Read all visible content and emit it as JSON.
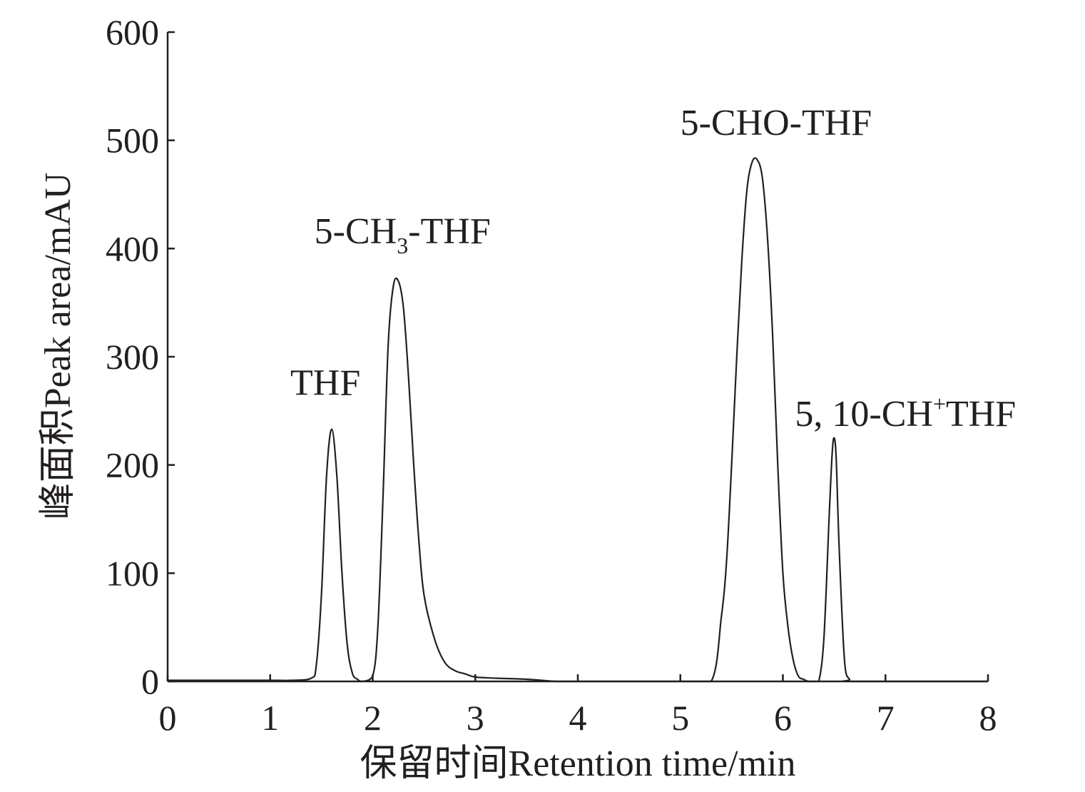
{
  "chart_data": {
    "type": "line",
    "xlabel": "保留时间Retention time/min",
    "ylabel": "峰面积Peak area/mAU",
    "xlim": [
      0,
      8
    ],
    "ylim": [
      0,
      600
    ],
    "x_ticks": [
      "0",
      "1",
      "2",
      "3",
      "4",
      "5",
      "6",
      "7",
      "8"
    ],
    "y_ticks": [
      "0",
      "100",
      "200",
      "300",
      "400",
      "500",
      "600"
    ],
    "grid": false,
    "series": [
      {
        "x": [
          0.0,
          1.0,
          1.2,
          1.4,
          1.45,
          1.5,
          1.55,
          1.6,
          1.65,
          1.7,
          1.75,
          1.8,
          1.85,
          1.9,
          2.0,
          2.05,
          2.1,
          2.15,
          2.2,
          2.25,
          2.3,
          2.35,
          2.4,
          2.45,
          2.5,
          2.6,
          2.7,
          2.8,
          2.9,
          3.0,
          3.2,
          3.5,
          3.8,
          4.0,
          5.0,
          5.3,
          5.4,
          5.45,
          5.5,
          5.55,
          5.6,
          5.65,
          5.7,
          5.75,
          5.8,
          5.85,
          5.9,
          5.95,
          6.0,
          6.05,
          6.1,
          6.15,
          6.2,
          6.25,
          6.3,
          6.35,
          6.4,
          6.45,
          6.48,
          6.5,
          6.52,
          6.55,
          6.6,
          6.65,
          6.7,
          8.0
        ],
        "y": [
          1,
          1,
          1,
          3,
          15,
          80,
          190,
          233,
          190,
          100,
          35,
          8,
          2,
          0,
          5,
          50,
          170,
          310,
          365,
          370,
          345,
          280,
          200,
          130,
          80,
          40,
          18,
          10,
          7,
          4,
          3,
          2,
          0,
          0,
          0,
          0,
          60,
          110,
          200,
          300,
          390,
          455,
          480,
          482,
          465,
          410,
          320,
          200,
          100,
          50,
          20,
          5,
          2,
          0,
          0,
          0,
          40,
          150,
          210,
          225,
          205,
          120,
          20,
          2,
          0,
          0
        ]
      }
    ],
    "annotations": [
      {
        "text": "THF",
        "x": 1.6,
        "y": 233
      },
      {
        "text_main": "5-CH",
        "text_sub": "3",
        "text_tail": "-THF",
        "x": 2.3,
        "y": 370
      },
      {
        "text": "5-CHO-THF",
        "x": 5.75,
        "y": 482
      },
      {
        "text_main": "5, 10-CH",
        "text_sup": "+",
        "text_tail": "THF",
        "x": 6.5,
        "y": 225
      }
    ]
  }
}
